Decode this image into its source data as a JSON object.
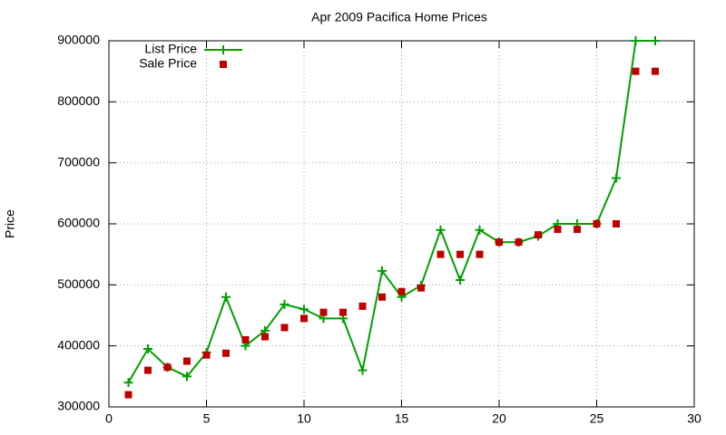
{
  "chart_data": {
    "type": "line",
    "title": "Apr 2009 Pacifica Home Prices",
    "y_label": "Price",
    "x": [
      1,
      2,
      3,
      4,
      5,
      6,
      7,
      8,
      9,
      10,
      11,
      12,
      13,
      14,
      15,
      16,
      17,
      18,
      19,
      20,
      21,
      22,
      23,
      24,
      25,
      26,
      27,
      28
    ],
    "series": [
      {
        "name": "List Price",
        "color": "#00a000",
        "style": "linespoints",
        "values": [
          340000,
          395000,
          365000,
          350000,
          389000,
          480000,
          400000,
          425000,
          468000,
          460000,
          445000,
          445000,
          360000,
          523000,
          480000,
          499000,
          590000,
          508000,
          590000,
          570000,
          570000,
          580000,
          600000,
          600000,
          600000,
          675000,
          900000,
          900000
        ]
      },
      {
        "name": "Sale Price",
        "color": "#c00000",
        "style": "points",
        "values": [
          320000,
          360000,
          365000,
          375000,
          385000,
          388000,
          410000,
          415000,
          430000,
          445000,
          455000,
          455000,
          465000,
          480000,
          489000,
          495000,
          550000,
          550000,
          550000,
          570000,
          570000,
          582000,
          591000,
          591000,
          600000,
          600000,
          850000,
          850000
        ]
      }
    ],
    "xlim": [
      0,
      30
    ],
    "xticks": [
      0,
      5,
      10,
      15,
      20,
      25,
      30
    ],
    "ylim": [
      300000,
      900000
    ],
    "yticks": [
      300000,
      400000,
      500000,
      600000,
      700000,
      800000,
      900000
    ],
    "grid": true,
    "legend": "top-left"
  }
}
